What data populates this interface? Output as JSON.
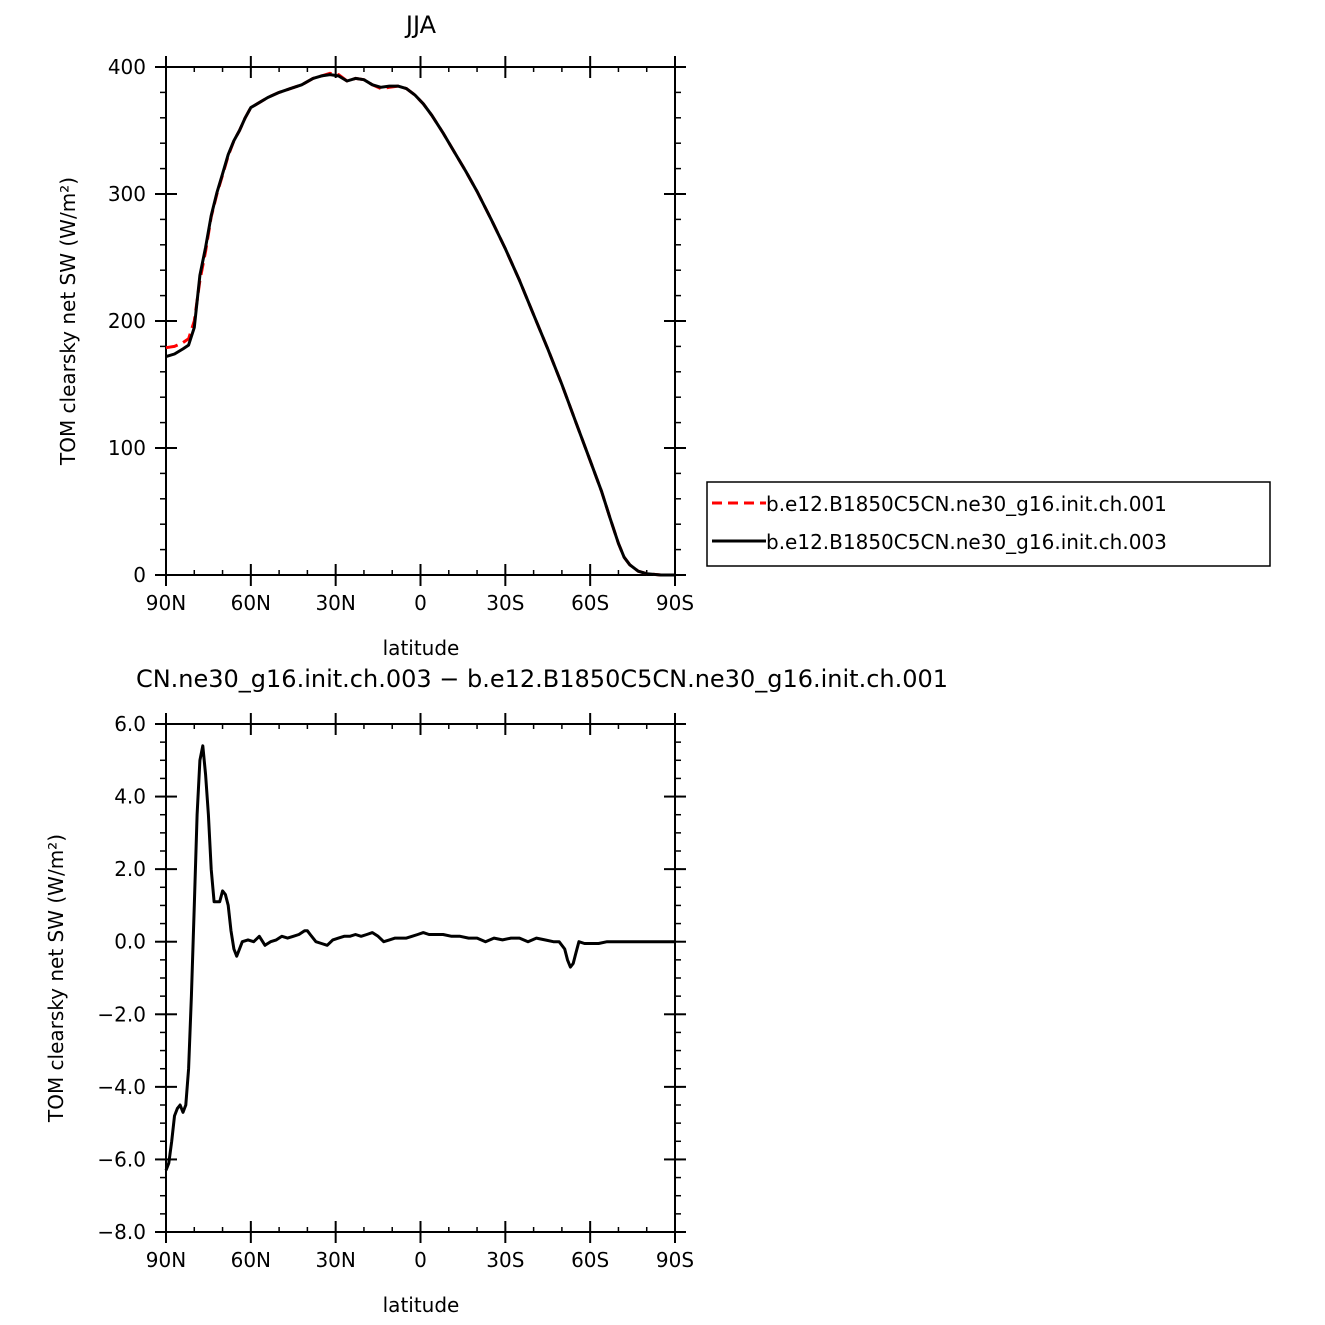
{
  "chart_data": [
    {
      "type": "line",
      "title": "JJA",
      "xlabel": "latitude",
      "ylabel": "TOM clearsky net SW (W/m²)",
      "x_ticks": [
        {
          "value": 90,
          "label": "90N"
        },
        {
          "value": 60,
          "label": "60N"
        },
        {
          "value": 30,
          "label": "30N"
        },
        {
          "value": 0,
          "label": "0"
        },
        {
          "value": -30,
          "label": "30S"
        },
        {
          "value": -60,
          "label": "60S"
        },
        {
          "value": -90,
          "label": "90S"
        }
      ],
      "y_ticks": [
        {
          "value": 0,
          "label": "0"
        },
        {
          "value": 100,
          "label": "100"
        },
        {
          "value": 200,
          "label": "200"
        },
        {
          "value": 300,
          "label": "300"
        },
        {
          "value": 400,
          "label": "400"
        }
      ],
      "xlim": [
        90,
        -90
      ],
      "ylim": [
        0,
        400
      ],
      "legend_position": "right",
      "series": [
        {
          "name": "b.e12.B1850C5CN.ne30_g16.init.ch.001",
          "color": "#ff0000",
          "dash": "dashed",
          "points": [
            [
              90,
              179
            ],
            [
              87,
              180
            ],
            [
              84,
              183
            ],
            [
              82,
              186
            ],
            [
              80,
              200
            ],
            [
              78,
              232
            ],
            [
              76,
              255
            ],
            [
              74,
              282
            ],
            [
              72,
              300
            ],
            [
              70,
              315
            ],
            [
              68,
              330
            ],
            [
              66,
              342
            ],
            [
              64,
              350
            ],
            [
              62,
              360
            ],
            [
              60,
              368
            ],
            [
              57,
              372
            ],
            [
              54,
              376
            ],
            [
              50,
              380
            ],
            [
              46,
              383
            ],
            [
              42,
              386
            ],
            [
              38,
              391
            ],
            [
              35,
              393
            ],
            [
              32,
              395
            ],
            [
              29,
              394
            ],
            [
              26,
              389
            ],
            [
              23,
              391
            ],
            [
              20,
              390
            ],
            [
              17,
              386
            ],
            [
              14,
              383
            ],
            [
              11,
              384
            ],
            [
              8,
              385
            ],
            [
              5,
              383
            ],
            [
              2,
              378
            ],
            [
              -1,
              371
            ],
            [
              -4,
              362
            ],
            [
              -8,
              348
            ],
            [
              -12,
              333
            ],
            [
              -16,
              318
            ],
            [
              -20,
              302
            ],
            [
              -25,
              280
            ],
            [
              -30,
              257
            ],
            [
              -35,
              232
            ],
            [
              -40,
              205
            ],
            [
              -45,
              178
            ],
            [
              -50,
              150
            ],
            [
              -55,
              120
            ],
            [
              -60,
              90
            ],
            [
              -64,
              66
            ],
            [
              -67,
              45
            ],
            [
              -70,
              25
            ],
            [
              -72,
              14
            ],
            [
              -74,
              8
            ],
            [
              -77,
              3
            ],
            [
              -80,
              1
            ],
            [
              -85,
              0
            ],
            [
              -90,
              0
            ]
          ]
        },
        {
          "name": "b.e12.B1850C5CN.ne30_g16.init.ch.003",
          "color": "#000000",
          "dash": "solid",
          "points": [
            [
              90,
              172
            ],
            [
              87,
              174
            ],
            [
              84,
              178
            ],
            [
              82,
              181
            ],
            [
              80,
              195
            ],
            [
              78,
              236
            ],
            [
              76,
              258
            ],
            [
              74,
              283
            ],
            [
              72,
              301
            ],
            [
              70,
              316
            ],
            [
              68,
              331
            ],
            [
              66,
              342
            ],
            [
              64,
              350
            ],
            [
              62,
              360
            ],
            [
              60,
              368
            ],
            [
              57,
              372
            ],
            [
              54,
              376
            ],
            [
              50,
              380
            ],
            [
              46,
              383
            ],
            [
              42,
              386
            ],
            [
              38,
              391
            ],
            [
              35,
              393
            ],
            [
              32,
              394
            ],
            [
              29,
              393
            ],
            [
              26,
              389
            ],
            [
              23,
              391
            ],
            [
              20,
              390
            ],
            [
              17,
              386
            ],
            [
              14,
              384
            ],
            [
              11,
              385
            ],
            [
              8,
              385
            ],
            [
              5,
              383
            ],
            [
              2,
              378
            ],
            [
              -1,
              371
            ],
            [
              -4,
              362
            ],
            [
              -8,
              348
            ],
            [
              -12,
              333
            ],
            [
              -16,
              318
            ],
            [
              -20,
              302
            ],
            [
              -25,
              280
            ],
            [
              -30,
              257
            ],
            [
              -35,
              232
            ],
            [
              -40,
              205
            ],
            [
              -45,
              178
            ],
            [
              -50,
              150
            ],
            [
              -55,
              120
            ],
            [
              -60,
              90
            ],
            [
              -64,
              66
            ],
            [
              -67,
              45
            ],
            [
              -70,
              25
            ],
            [
              -72,
              14
            ],
            [
              -74,
              8
            ],
            [
              -77,
              3
            ],
            [
              -80,
              1
            ],
            [
              -85,
              0
            ],
            [
              -90,
              0
            ]
          ]
        }
      ]
    },
    {
      "type": "line",
      "title": "CN.ne30_g16.init.ch.003 − b.e12.B1850C5CN.ne30_g16.init.ch.001",
      "xlabel": "latitude",
      "ylabel": "TOM clearsky net SW (W/m²)",
      "x_ticks": [
        {
          "value": 90,
          "label": "90N"
        },
        {
          "value": 60,
          "label": "60N"
        },
        {
          "value": 30,
          "label": "30N"
        },
        {
          "value": 0,
          "label": "0"
        },
        {
          "value": -30,
          "label": "30S"
        },
        {
          "value": -60,
          "label": "60S"
        },
        {
          "value": -90,
          "label": "90S"
        }
      ],
      "y_ticks": [
        {
          "value": -8,
          "label": "−8.0"
        },
        {
          "value": -6,
          "label": "−6.0"
        },
        {
          "value": -4,
          "label": "−4.0"
        },
        {
          "value": -2,
          "label": "−2.0"
        },
        {
          "value": 0,
          "label": "0.0"
        },
        {
          "value": 2,
          "label": "2.0"
        },
        {
          "value": 4,
          "label": "4.0"
        },
        {
          "value": 6,
          "label": "6.0"
        }
      ],
      "xlim": [
        90,
        -90
      ],
      "ylim": [
        -8,
        6
      ],
      "series": [
        {
          "name": "",
          "color": "#000000",
          "dash": "solid",
          "points": [
            [
              90,
              -6.3
            ],
            [
              89,
              -6.1
            ],
            [
              88,
              -5.5
            ],
            [
              87,
              -4.8
            ],
            [
              86,
              -4.6
            ],
            [
              85,
              -4.5
            ],
            [
              84,
              -4.7
            ],
            [
              83,
              -4.5
            ],
            [
              82,
              -3.5
            ],
            [
              81,
              -1.5
            ],
            [
              80,
              1.0
            ],
            [
              79,
              3.5
            ],
            [
              78,
              5.0
            ],
            [
              77,
              5.4
            ],
            [
              76,
              4.6
            ],
            [
              75,
              3.5
            ],
            [
              74,
              2.0
            ],
            [
              73,
              1.1
            ],
            [
              72,
              1.1
            ],
            [
              71,
              1.1
            ],
            [
              70,
              1.4
            ],
            [
              69,
              1.3
            ],
            [
              68,
              1.0
            ],
            [
              67,
              0.3
            ],
            [
              66,
              -0.2
            ],
            [
              65,
              -0.4
            ],
            [
              64,
              -0.2
            ],
            [
              63,
              0.0
            ],
            [
              61,
              0.05
            ],
            [
              59,
              0.0
            ],
            [
              57,
              0.15
            ],
            [
              55,
              -0.1
            ],
            [
              53,
              0.0
            ],
            [
              51,
              0.05
            ],
            [
              49,
              0.15
            ],
            [
              47,
              0.1
            ],
            [
              45,
              0.15
            ],
            [
              43,
              0.2
            ],
            [
              41,
              0.3
            ],
            [
              40,
              0.3
            ],
            [
              39,
              0.2
            ],
            [
              37,
              0.0
            ],
            [
              35,
              -0.05
            ],
            [
              33,
              -0.1
            ],
            [
              31,
              0.05
            ],
            [
              29,
              0.1
            ],
            [
              27,
              0.15
            ],
            [
              25,
              0.15
            ],
            [
              23,
              0.2
            ],
            [
              21,
              0.15
            ],
            [
              19,
              0.2
            ],
            [
              17,
              0.25
            ],
            [
              15,
              0.15
            ],
            [
              13,
              0.0
            ],
            [
              11,
              0.05
            ],
            [
              9,
              0.1
            ],
            [
              7,
              0.1
            ],
            [
              5,
              0.1
            ],
            [
              3,
              0.15
            ],
            [
              1,
              0.2
            ],
            [
              -1,
              0.25
            ],
            [
              -3,
              0.2
            ],
            [
              -5,
              0.2
            ],
            [
              -8,
              0.2
            ],
            [
              -11,
              0.15
            ],
            [
              -14,
              0.15
            ],
            [
              -17,
              0.1
            ],
            [
              -20,
              0.1
            ],
            [
              -23,
              0.0
            ],
            [
              -26,
              0.1
            ],
            [
              -29,
              0.05
            ],
            [
              -32,
              0.1
            ],
            [
              -35,
              0.1
            ],
            [
              -38,
              0.0
            ],
            [
              -41,
              0.1
            ],
            [
              -44,
              0.05
            ],
            [
              -47,
              0.0
            ],
            [
              -49,
              0.0
            ],
            [
              -51,
              -0.2
            ],
            [
              -52,
              -0.5
            ],
            [
              -53,
              -0.7
            ],
            [
              -54,
              -0.6
            ],
            [
              -55,
              -0.3
            ],
            [
              -56,
              0.0
            ],
            [
              -58,
              -0.05
            ],
            [
              -60,
              -0.05
            ],
            [
              -63,
              -0.05
            ],
            [
              -66,
              0.0
            ],
            [
              -70,
              0.0
            ],
            [
              -75,
              0.0
            ],
            [
              -80,
              0.0
            ],
            [
              -85,
              0.0
            ],
            [
              -90,
              0.0
            ]
          ]
        }
      ]
    }
  ]
}
